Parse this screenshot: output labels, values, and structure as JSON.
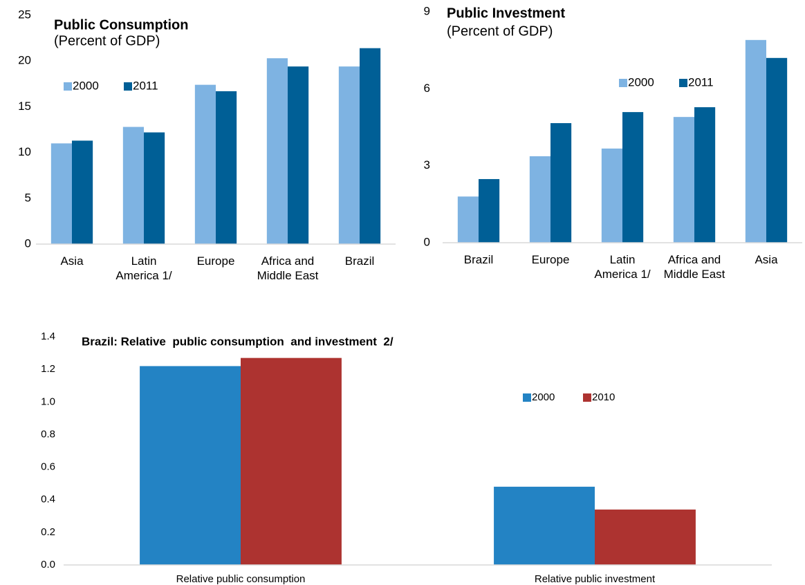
{
  "chart_data": [
    {
      "type": "bar",
      "title": "Public Consumption",
      "subtitle": "(Percent of GDP)",
      "categories": [
        "Asia",
        "Latin America 1/",
        "Europe",
        "Africa and Middle East",
        "Brazil"
      ],
      "series": [
        {
          "name": "2000",
          "color": "#7eb3e2",
          "values": [
            11.0,
            12.8,
            17.4,
            20.3,
            19.4
          ]
        },
        {
          "name": "2011",
          "color": "#005f96",
          "values": [
            11.3,
            12.2,
            16.7,
            19.4,
            21.4
          ]
        }
      ],
      "ylim": [
        0,
        25
      ],
      "yticks": [
        0,
        5,
        10,
        15,
        20,
        25
      ],
      "legend": "upper left"
    },
    {
      "type": "bar",
      "title": "Public Investment",
      "subtitle": "(Percent of GDP)",
      "categories": [
        "Brazil",
        "Europe",
        "Latin America 1/",
        "Africa and Middle East",
        "Asia"
      ],
      "series": [
        {
          "name": "2000",
          "color": "#7eb3e2",
          "values": [
            1.8,
            3.37,
            3.67,
            4.9,
            7.9
          ]
        },
        {
          "name": "2011",
          "color": "#005f96",
          "values": [
            2.48,
            4.66,
            5.09,
            5.28,
            7.2
          ]
        }
      ],
      "ylim": [
        0,
        9
      ],
      "yticks": [
        0,
        3,
        6,
        9
      ],
      "legend": "upper right"
    },
    {
      "type": "bar",
      "title": "Brazil: Relative  public consumption  and investment  2/",
      "categories": [
        "Relative public consumption",
        "Relative public investment"
      ],
      "series": [
        {
          "name": "2000",
          "color": "#2383c4",
          "values": [
            1.22,
            0.48
          ]
        },
        {
          "name": "2010",
          "color": "#ad3330",
          "values": [
            1.27,
            0.34
          ]
        }
      ],
      "ylim": [
        0,
        1.4
      ],
      "yticks": [
        {
          "value": 0,
          "label": "0.0"
        },
        0.2,
        0.4,
        0.6,
        0.8,
        {
          "value": 1,
          "label": "1.0"
        },
        1.2,
        1.4
      ],
      "legend": "center right"
    }
  ]
}
